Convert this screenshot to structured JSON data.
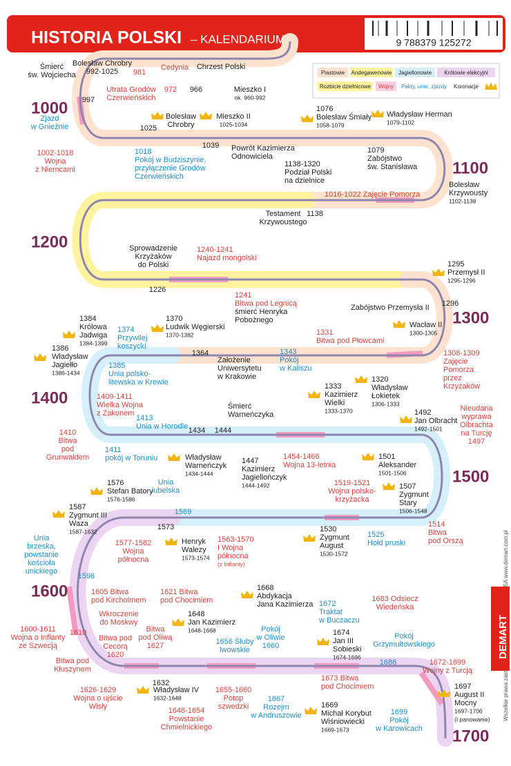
{
  "header": {
    "title": "HISTORIA POLSKI",
    "subtitle": "– KALENDARIUM",
    "barcode": "9 788379 125272"
  },
  "legend": {
    "items": [
      "Piastowie",
      "Andegawenowie",
      "Jagiellonowie",
      "Królowie elekcyjni",
      "Rozbicie dzielnicowe",
      "Wojny",
      "Pakty, unie, zjazdy",
      "Koronacje"
    ]
  },
  "centuries": [
    "1000",
    "1100",
    "1200",
    "1300",
    "1400",
    "1500",
    "1600",
    "1700"
  ],
  "events": [
    {
      "lines": [
        "Śmierć",
        "św. Wojciecha"
      ],
      "kind": "ruler"
    },
    {
      "lines": [
        "Bolesław Chrobry",
        "992-1025"
      ],
      "kind": "ruler"
    },
    {
      "lines": [
        "981"
      ],
      "kind": "war"
    },
    {
      "lines": [
        "Utrata Grodów",
        "Czerwieńskich"
      ],
      "kind": "war"
    },
    {
      "lines": [
        "Cedynia"
      ],
      "kind": "war"
    },
    {
      "lines": [
        "972"
      ],
      "kind": "war"
    },
    {
      "lines": [
        "966"
      ],
      "kind": "ruler"
    },
    {
      "lines": [
        "Chrzest Polski"
      ],
      "kind": "ruler"
    },
    {
      "lines": [
        "Mieszko I",
        "ok. 960-992"
      ],
      "kind": "ruler"
    },
    {
      "lines": [
        "997"
      ],
      "kind": "ruler"
    },
    {
      "lines": [
        "Zjazd",
        "w Gnieźnie"
      ],
      "kind": "pact"
    },
    {
      "lines": [
        "1002-1018",
        "Wojna",
        "z Niemcami"
      ],
      "kind": "war"
    },
    {
      "lines": [
        "1025"
      ],
      "kind": "ruler"
    },
    {
      "lines": [
        "Bolesław",
        "Chrobry"
      ],
      "kind": "ruler"
    },
    {
      "lines": [
        "Mieszko II",
        "1025-1034"
      ],
      "kind": "ruler"
    },
    {
      "lines": [
        "1018",
        "Pokój w Budziszynie,",
        "przyłączenie Grodów",
        "Czerwieńskich"
      ],
      "kind": "pact"
    },
    {
      "lines": [
        "1039"
      ],
      "kind": "ruler"
    },
    {
      "lines": [
        "Powrót Kazimierza",
        "Odnowiciela"
      ],
      "kind": "ruler"
    },
    {
      "lines": [
        "1076",
        "Bolesław Śmiały",
        "1058-1079"
      ],
      "kind": "ruler"
    },
    {
      "lines": [
        "Władysław Herman",
        "1079-1102"
      ],
      "kind": "ruler"
    },
    {
      "lines": [
        "1079",
        "Zabójstwo",
        "św. Stanisława"
      ],
      "kind": "ruler"
    },
    {
      "lines": [
        "Bolesław",
        "Krzywousty",
        "1102-1138"
      ],
      "kind": "ruler"
    },
    {
      "lines": [
        "1138-1320",
        "Podział Polski",
        "na dzielnice"
      ],
      "kind": "ruler"
    },
    {
      "lines": [
        "1016-1022 Zajęcie Pomorza"
      ],
      "kind": "war"
    },
    {
      "lines": [
        "Testament",
        "Krzywoustego"
      ],
      "kind": "ruler"
    },
    {
      "lines": [
        "1138"
      ],
      "kind": "ruler"
    },
    {
      "lines": [
        "Sprowadzenie",
        "Krzyżaków",
        "do Polski"
      ],
      "kind": "ruler"
    },
    {
      "lines": [
        "1226"
      ],
      "kind": "ruler"
    },
    {
      "lines": [
        "1240-1241",
        "Najazd mongolski"
      ],
      "kind": "war"
    },
    {
      "lines": [
        "1241",
        "Bitwa pod Legnicą"
      ],
      "kind": "war"
    },
    {
      "lines": [
        "śmierć Henryka",
        "Pobożnego"
      ],
      "kind": "ruler"
    },
    {
      "lines": [
        "1295",
        "Przemysł II",
        "1295-1296"
      ],
      "kind": "ruler"
    },
    {
      "lines": [
        "Zabójstwo Przemysła II"
      ],
      "kind": "ruler"
    },
    {
      "lines": [
        "1296"
      ],
      "kind": "ruler"
    },
    {
      "lines": [
        "Wacław II",
        "1300-1305"
      ],
      "kind": "ruler"
    },
    {
      "lines": [
        "1331",
        "Bitwa pod Płowcami"
      ],
      "kind": "war"
    },
    {
      "lines": [
        "1308-1309",
        "Zajęcie",
        "Pomorza",
        "przez",
        "Krzyżaków"
      ],
      "kind": "war"
    },
    {
      "lines": [
        "1343",
        "Pokój",
        "w Kaliszu"
      ],
      "kind": "pact"
    },
    {
      "lines": [
        "1333",
        "Kazimierz",
        "Wielki",
        "1333-1370"
      ],
      "kind": "ruler"
    },
    {
      "lines": [
        "1320",
        "Władysław",
        "Łokietek",
        "1306-1333"
      ],
      "kind": "ruler"
    },
    {
      "lines": [
        "1384",
        "Królowa",
        "Jadwiga",
        "1384-1399"
      ],
      "kind": "ruler"
    },
    {
      "lines": [
        "1374",
        "Przywilej",
        "koszycki"
      ],
      "kind": "pact"
    },
    {
      "lines": [
        "1370",
        "Ludwik Węgierski",
        "1370-1382"
      ],
      "kind": "ruler"
    },
    {
      "lines": [
        "1364"
      ],
      "kind": "ruler"
    },
    {
      "lines": [
        "Założenie",
        "Uniwersytetu",
        "w Krakowie"
      ],
      "kind": "ruler"
    },
    {
      "lines": [
        "1386",
        "Władysław",
        "Jagiełło",
        "1386-1434"
      ],
      "kind": "ruler"
    },
    {
      "lines": [
        "1385",
        "Unia polsko-",
        "litewska w Krewie"
      ],
      "kind": "pact"
    },
    {
      "lines": [
        "1409-1411",
        "Wielka Wojna",
        "z Zakonem"
      ],
      "kind": "war"
    },
    {
      "lines": [
        "1410",
        "Bitwa",
        "pod",
        "Grunwaldem"
      ],
      "kind": "war"
    },
    {
      "lines": [
        "1413",
        "Unia w Horodle"
      ],
      "kind": "pact"
    },
    {
      "lines": [
        "1411",
        "pokój w Toruniu"
      ],
      "kind": "pact"
    },
    {
      "lines": [
        "1434"
      ],
      "kind": "ruler"
    },
    {
      "lines": [
        "1444"
      ],
      "kind": "ruler"
    },
    {
      "lines": [
        "Śmierć",
        "Warneńczyka"
      ],
      "kind": "ruler"
    },
    {
      "lines": [
        "Władysław",
        "Warneńczyk",
        "1434-1444"
      ],
      "kind": "ruler"
    },
    {
      "lines": [
        "1447",
        "Kazimierz",
        "Jagiellończyk",
        "1444-1492"
      ],
      "kind": "ruler"
    },
    {
      "lines": [
        "1454-1466",
        "Wojna 13-letnia"
      ],
      "kind": "war"
    },
    {
      "lines": [
        "1492",
        "Jan Olbracht",
        "1492-1501"
      ],
      "kind": "ruler"
    },
    {
      "lines": [
        "Nieudana",
        "wyprawa",
        "Olbrachta",
        "na Turcję",
        "1497"
      ],
      "kind": "war"
    },
    {
      "lines": [
        "1501",
        "Aleksander",
        "1501-1506"
      ],
      "kind": "ruler"
    },
    {
      "lines": [
        "1507",
        "Zygmunt",
        "Stary",
        "1506-1548"
      ],
      "kind": "ruler"
    },
    {
      "lines": [
        "1519-1521",
        "Wojna polsko-",
        "krzyżacka"
      ],
      "kind": "war"
    },
    {
      "lines": [
        "1514",
        "Bitwa",
        "pod Orszą"
      ],
      "kind": "war"
    },
    {
      "lines": [
        "1530",
        "Zygmunt",
        "August",
        "1530-1572"
      ],
      "kind": "ruler"
    },
    {
      "lines": [
        "1525",
        "Hołd pruski"
      ],
      "kind": "pact"
    },
    {
      "lines": [
        "1576",
        "Stefan Batory",
        "1576-1586"
      ],
      "kind": "ruler"
    },
    {
      "lines": [
        "Unia",
        "lubelska"
      ],
      "kind": "pact"
    },
    {
      "lines": [
        "1569"
      ],
      "kind": "pact"
    },
    {
      "lines": [
        "1587",
        "Zygmunt III",
        "Waza",
        "1587-1632"
      ],
      "kind": "ruler"
    },
    {
      "lines": [
        "1573"
      ],
      "kind": "ruler"
    },
    {
      "lines": [
        "1577-1582",
        "Wojna",
        "północna"
      ],
      "kind": "war"
    },
    {
      "lines": [
        "Henryk",
        "Walezy",
        "1573-1574"
      ],
      "kind": "ruler"
    },
    {
      "lines": [
        "1563-1570",
        "I Wojna",
        "północna",
        "(z Inflanty)"
      ],
      "kind": "war"
    },
    {
      "lines": [
        "Unia",
        "brzeska,",
        "powstanie",
        "kościoła",
        "unickiego"
      ],
      "kind": "pact"
    },
    {
      "lines": [
        "1596"
      ],
      "kind": "pact"
    },
    {
      "lines": [
        "1605 Bitwa",
        "pod Kircholmem"
      ],
      "kind": "war"
    },
    {
      "lines": [
        "1621 Bitwa",
        "pod Chocimiem"
      ],
      "kind": "war"
    },
    {
      "lines": [
        "Wkroczenie",
        "do Moskwy"
      ],
      "kind": "war"
    },
    {
      "lines": [
        "1648",
        "Jan Kazimierz",
        "1648-1668"
      ],
      "kind": "ruler"
    },
    {
      "lines": [
        "1668",
        "Abdykacja",
        "Jana Kazimierza"
      ],
      "kind": "ruler"
    },
    {
      "lines": [
        "1600-1611",
        "Wojna o Inflanty",
        "ze Szwecją"
      ],
      "kind": "war"
    },
    {
      "lines": [
        "1610"
      ],
      "kind": "war"
    },
    {
      "lines": [
        "Bitwa pod",
        "Cecorą",
        "1620"
      ],
      "kind": "war"
    },
    {
      "lines": [
        "Bitwa",
        "pod Oliwą",
        "1627"
      ],
      "kind": "war"
    },
    {
      "lines": [
        "Bitwa pod",
        "Kłuszynem"
      ],
      "kind": "war"
    },
    {
      "lines": [
        "1656 Śluby",
        "lwowskie"
      ],
      "kind": "pact"
    },
    {
      "lines": [
        "Pokój",
        "w Oliwie",
        "1660"
      ],
      "kind": "pact"
    },
    {
      "lines": [
        "1672",
        "Traktat",
        "w Buczaczu"
      ],
      "kind": "pact"
    },
    {
      "lines": [
        "1674",
        "Jan III",
        "Sobieski",
        "1674-1696"
      ],
      "kind": "ruler"
    },
    {
      "lines": [
        "1683 Odsiecz",
        "Wiedeńska"
      ],
      "kind": "war"
    },
    {
      "lines": [
        "Pokój",
        "Grzymułtowskiego"
      ],
      "kind": "pact"
    },
    {
      "lines": [
        "1686"
      ],
      "kind": "pact"
    },
    {
      "lines": [
        "1632"
      ],
      "kind": "ruler"
    },
    {
      "lines": [
        "Władysław IV",
        "1632-1648"
      ],
      "kind": "ruler"
    },
    {
      "lines": [
        "1626-1629",
        "Wojna o ujście",
        "Wisły"
      ],
      "kind": "war"
    },
    {
      "lines": [
        "1655-1660",
        "Potop",
        "szwedzki"
      ],
      "kind": "war"
    },
    {
      "lines": [
        "1648-1654",
        "Powstanie",
        "Chmielnickiego"
      ],
      "kind": "war"
    },
    {
      "lines": [
        "1667",
        "Rozejm",
        "w Andruszowie"
      ],
      "kind": "pact"
    },
    {
      "lines": [
        "1669",
        "Michał Korybut",
        "Wiśniowiecki",
        "1669-1673"
      ],
      "kind": "ruler"
    },
    {
      "lines": [
        "1673 Bitwa",
        "pod Chocimiem"
      ],
      "kind": "war"
    },
    {
      "lines": [
        "1672-1699",
        "Wojny z Turcją"
      ],
      "kind": "war"
    },
    {
      "lines": [
        "1697",
        "August II",
        "Mocny",
        "1697-1706",
        "(I panowanie)"
      ],
      "kind": "ruler"
    },
    {
      "lines": [
        "1699",
        "Pokój",
        "w Karowicach"
      ],
      "kind": "pact"
    }
  ],
  "side": {
    "copyright": "Wszelkie prawa zastrzeżone © Copyright by DEMART SA www.demart.com.pl",
    "brand": "DEMART"
  }
}
